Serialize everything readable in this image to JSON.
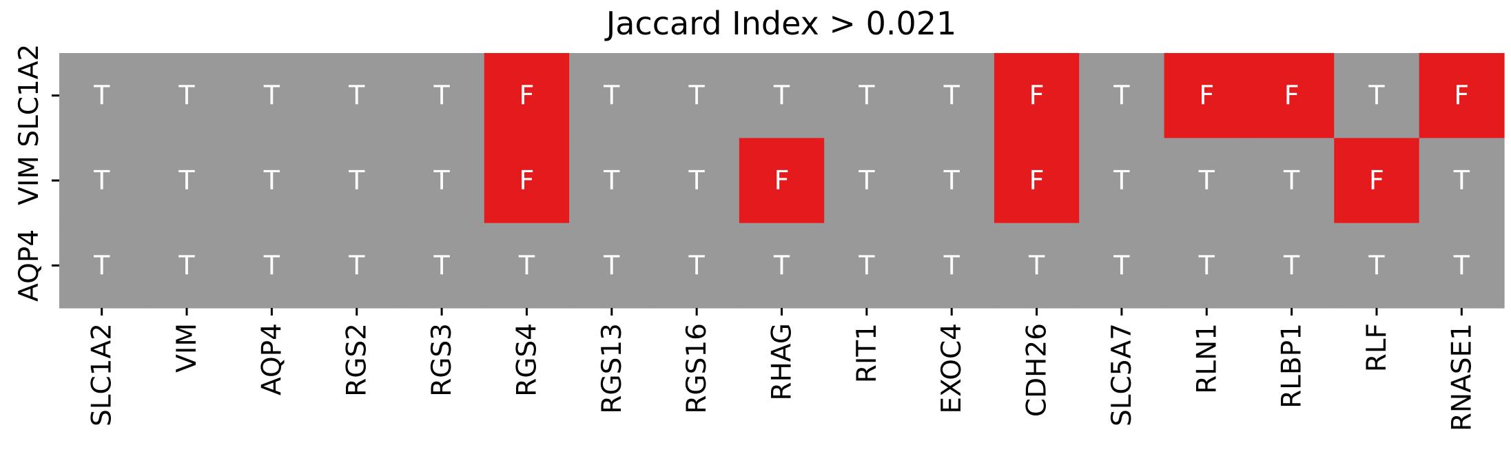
{
  "chart_data": {
    "type": "heatmap",
    "title": "Jaccard Index > 0.021",
    "xlabel": "",
    "ylabel": "",
    "x_categories": [
      "SLC1A2",
      "VIM",
      "AQP4",
      "RGS2",
      "RGS3",
      "RGS4",
      "RGS13",
      "RGS16",
      "RHAG",
      "RIT1",
      "EXOC4",
      "CDH26",
      "SLC5A7",
      "RLN1",
      "RLBP1",
      "RLF",
      "RNASE1"
    ],
    "y_categories": [
      "SLC1A2",
      "VIM",
      "AQP4"
    ],
    "values": [
      [
        "T",
        "T",
        "T",
        "T",
        "T",
        "F",
        "T",
        "T",
        "T",
        "T",
        "T",
        "F",
        "T",
        "F",
        "F",
        "T",
        "F"
      ],
      [
        "T",
        "T",
        "T",
        "T",
        "T",
        "F",
        "T",
        "T",
        "F",
        "T",
        "T",
        "F",
        "T",
        "T",
        "T",
        "F",
        "T"
      ],
      [
        "T",
        "T",
        "T",
        "T",
        "T",
        "T",
        "T",
        "T",
        "T",
        "T",
        "T",
        "T",
        "T",
        "T",
        "T",
        "T",
        "T"
      ]
    ],
    "colors": {
      "T": "#999999",
      "F": "#e41a1c",
      "cell_text": "#ffffff"
    },
    "grid": false,
    "legend": "none"
  }
}
